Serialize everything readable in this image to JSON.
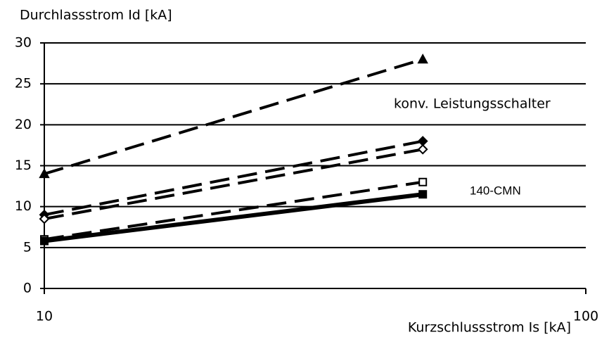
{
  "chart_data": {
    "type": "line",
    "title": "Durchlassstrom Id [kA]",
    "x_label": "Kurzschlussstrom Is [kA]",
    "x": [
      10,
      50
    ],
    "xlim": [
      10,
      100
    ],
    "xticks": [
      10,
      100
    ],
    "xscale": "log",
    "ylim": [
      0,
      30
    ],
    "yticks": [
      0,
      5,
      10,
      15,
      20,
      25,
      30
    ],
    "grid": true,
    "series": [
      {
        "color": "#000000",
        "marker": "triangle",
        "line": "dashed",
        "values": [
          14,
          28
        ]
      },
      {
        "color": "#000000",
        "marker": "diamond",
        "line": "dashed",
        "values": [
          9,
          18
        ]
      },
      {
        "color": "#000000",
        "marker": "diamond-open",
        "line": "dashed",
        "values": [
          8.5,
          17
        ]
      },
      {
        "color": "#000000",
        "marker": "square-open",
        "line": "dashed",
        "values": [
          6,
          13
        ]
      },
      {
        "color": "#000000",
        "marker": "square",
        "line": "solid",
        "values": [
          5.8,
          11.5
        ]
      }
    ],
    "annotations": [
      {
        "text": "konv. Leistungsschalter"
      },
      {
        "text": "140-CMN"
      }
    ]
  }
}
